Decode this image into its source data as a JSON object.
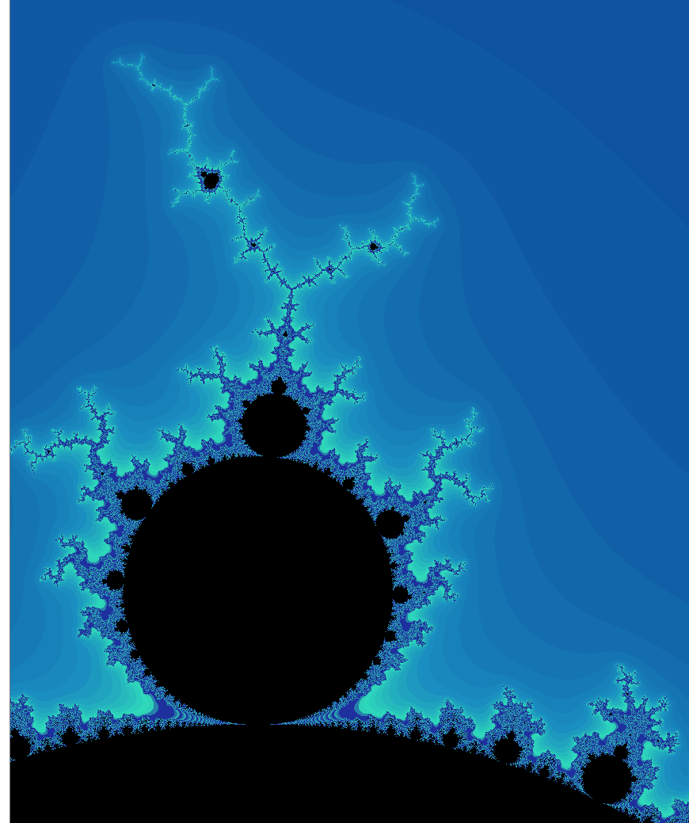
{
  "image": {
    "subject": "mandelbrot-set",
    "render": {
      "center_re": -0.06,
      "center_im": 0.87,
      "span_im": 0.58,
      "max_iterations": 220
    },
    "colors": {
      "interior": "#000000",
      "far_field": "#0a3f96",
      "mid_field": "#1a8fc0",
      "near_field": "#30e2ba",
      "filament": "#1e2f9e",
      "border": "#7a7a7a"
    }
  }
}
